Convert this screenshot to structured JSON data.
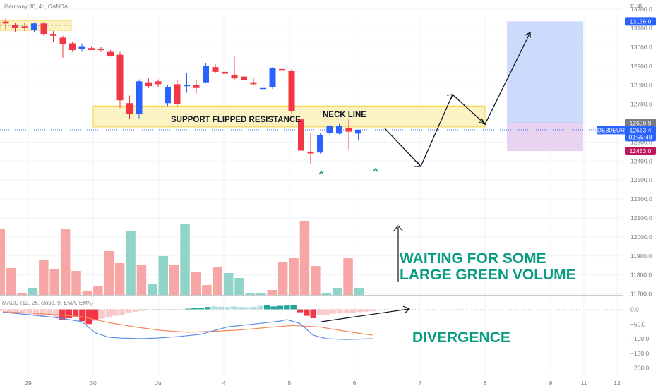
{
  "header": {
    "symbol_line": "Germany 30, 4h, OANDA",
    "currency": "EUR"
  },
  "price_axis": {
    "ticks": [
      "13200.0",
      "13100.0",
      "13000.0",
      "12900.0",
      "12800.0",
      "12700.0",
      "12600.0",
      "12500.0",
      "12400.0",
      "12300.0",
      "12200.0",
      "12100.0",
      "12000.0",
      "11900.0",
      "11800.0",
      "11700.0"
    ],
    "tick_values": [
      13200,
      13100,
      13000,
      12900,
      12800,
      12700,
      12600,
      12500,
      12400,
      12300,
      12200,
      12100,
      12000,
      11900,
      11800,
      11700
    ]
  },
  "badges": {
    "target": {
      "text": "13136.0",
      "value": 13136,
      "color": "#2962ff"
    },
    "entry": {
      "text": "12600.9",
      "value": 12600.9,
      "color": "#787b86"
    },
    "symbol": {
      "text": "DE30EUR",
      "color": "#2962ff"
    },
    "last": {
      "text": "12563.4",
      "value": 12563.4,
      "color": "#2962ff"
    },
    "timer": {
      "text": "02:55:48",
      "color": "#2962ff"
    },
    "stop": {
      "text": "12453.0",
      "value": 12453,
      "color": "#c2185b"
    }
  },
  "date_axis": {
    "labels": [
      "29",
      "30",
      "Jul",
      "4",
      "5",
      "6",
      "7",
      "8",
      "9",
      "11",
      "12"
    ],
    "day_index": [
      0,
      1,
      2,
      3,
      4,
      5,
      6,
      7,
      8,
      9,
      10
    ]
  },
  "macd": {
    "label": "MACD (12, 26, close, 9, EMA, EMA)",
    "ticks": [
      "0.0",
      "−50.0",
      "−100.0",
      "−150.0",
      "−200.0"
    ],
    "tick_values": [
      0,
      -50,
      -100,
      -150,
      -200
    ],
    "macd_line_color": "#5b8ee6",
    "signal_line_color": "#f7875a"
  },
  "annotations": {
    "support": "SUPPORT FLIPPED RESISTANCE",
    "neck": "NECK LINE",
    "waiting_1": "WAITING FOR SOME",
    "waiting_2": "LARGE GREEN VOLUME",
    "divergence": "DIVERGENCE"
  },
  "colors": {
    "up": "#2962ff",
    "down": "#f23645",
    "vol_up": "#8fd3c9",
    "vol_down": "#f7a6a6",
    "zone_fill": "#fbf3c4",
    "zone_stroke": "#f5cf3a",
    "target_zone": "#c7d7fb",
    "stop_zone": "#e6cfee",
    "hist_pos_dark": "#26a69a",
    "hist_pos_light": "#b2dfdb",
    "hist_neg_dark": "#f23645",
    "hist_neg_light": "#fbc9c9",
    "annotation_green": "#0a9c80"
  },
  "chart_data": {
    "type": "candlestick",
    "x_unit": "bar index (4h bars)",
    "ylim": [
      11700,
      13230
    ],
    "bars": [
      {
        "i": 0,
        "open": 13135,
        "high": 13150,
        "low": 13095,
        "close": 13125
      },
      {
        "i": 1,
        "open": 13115,
        "high": 13130,
        "low": 13080,
        "close": 13100
      },
      {
        "i": 2,
        "open": 13110,
        "high": 13130,
        "low": 13085,
        "close": 13100
      },
      {
        "i": 3,
        "open": 13090,
        "high": 13130,
        "low": 13080,
        "close": 13125
      },
      {
        "i": 4,
        "open": 13125,
        "high": 13135,
        "low": 13060,
        "close": 13070
      },
      {
        "i": 5,
        "open": 13070,
        "high": 13085,
        "low": 13025,
        "close": 13060
      },
      {
        "i": 6,
        "open": 13050,
        "high": 13060,
        "low": 12945,
        "close": 13015
      },
      {
        "i": 7,
        "open": 13020,
        "high": 13030,
        "low": 12975,
        "close": 12985
      },
      {
        "i": 8,
        "open": 12990,
        "high": 13020,
        "low": 12975,
        "close": 13005
      },
      {
        "i": 9,
        "open": 12995,
        "high": 13005,
        "low": 12985,
        "close": 12985
      },
      {
        "i": 10,
        "open": 12990,
        "high": 13000,
        "low": 12975,
        "close": 12985
      },
      {
        "i": 11,
        "open": 12975,
        "high": 12985,
        "low": 12950,
        "close": 12955
      },
      {
        "i": 12,
        "open": 12960,
        "high": 12975,
        "low": 12680,
        "close": 12720
      },
      {
        "i": 13,
        "open": 12705,
        "high": 12745,
        "low": 12620,
        "close": 12650
      },
      {
        "i": 14,
        "open": 12650,
        "high": 12830,
        "low": 12625,
        "close": 12820
      },
      {
        "i": 15,
        "open": 12815,
        "high": 12835,
        "low": 12785,
        "close": 12795
      },
      {
        "i": 16,
        "open": 12820,
        "high": 12830,
        "low": 12790,
        "close": 12805
      },
      {
        "i": 17,
        "open": 12705,
        "high": 12800,
        "low": 12690,
        "close": 12790
      },
      {
        "i": 18,
        "open": 12805,
        "high": 12825,
        "low": 12690,
        "close": 12700
      },
      {
        "i": 19,
        "open": 12800,
        "high": 12865,
        "low": 12760,
        "close": 12800
      },
      {
        "i": 20,
        "open": 12800,
        "high": 12830,
        "low": 12755,
        "close": 12785
      },
      {
        "i": 21,
        "open": 12815,
        "high": 12915,
        "low": 12810,
        "close": 12900
      },
      {
        "i": 22,
        "open": 12895,
        "high": 12910,
        "low": 12865,
        "close": 12870
      },
      {
        "i": 23,
        "open": 12870,
        "high": 12885,
        "low": 12860,
        "close": 12860
      },
      {
        "i": 24,
        "open": 12855,
        "high": 12950,
        "low": 12825,
        "close": 12835
      },
      {
        "i": 25,
        "open": 12845,
        "high": 12870,
        "low": 12790,
        "close": 12825
      },
      {
        "i": 26,
        "open": 12815,
        "high": 12840,
        "low": 12800,
        "close": 12805
      },
      {
        "i": 27,
        "open": 12785,
        "high": 12830,
        "low": 12775,
        "close": 12785
      },
      {
        "i": 28,
        "open": 12790,
        "high": 12895,
        "low": 12780,
        "close": 12890
      },
      {
        "i": 29,
        "open": 12885,
        "high": 12900,
        "low": 12875,
        "close": 12880
      },
      {
        "i": 30,
        "open": 12875,
        "high": 12885,
        "low": 12650,
        "close": 12665
      },
      {
        "i": 31,
        "open": 12620,
        "high": 12625,
        "low": 12435,
        "close": 12455
      },
      {
        "i": 32,
        "open": 12450,
        "high": 12545,
        "low": 12385,
        "close": 12440
      },
      {
        "i": 33,
        "open": 12445,
        "high": 12545,
        "low": 12440,
        "close": 12535
      },
      {
        "i": 34,
        "open": 12550,
        "high": 12590,
        "low": 12540,
        "close": 12585
      },
      {
        "i": 35,
        "open": 12545,
        "high": 12595,
        "low": 12540,
        "close": 12585
      },
      {
        "i": 36,
        "open": 12575,
        "high": 12620,
        "low": 12460,
        "close": 12555
      },
      {
        "i": 37,
        "open": 12545,
        "high": 12560,
        "low": 12510,
        "close": 12565
      }
    ],
    "volume": [
      {
        "i": 0,
        "value": 93,
        "dir": "down"
      },
      {
        "i": 1,
        "value": 38,
        "dir": "down"
      },
      {
        "i": 2,
        "value": 3,
        "dir": "down"
      },
      {
        "i": 3,
        "value": 10,
        "dir": "up"
      },
      {
        "i": 4,
        "value": 50,
        "dir": "down"
      },
      {
        "i": 5,
        "value": 37,
        "dir": "down"
      },
      {
        "i": 6,
        "value": 93,
        "dir": "down"
      },
      {
        "i": 7,
        "value": 34,
        "dir": "down"
      },
      {
        "i": 8,
        "value": 5,
        "dir": "down"
      },
      {
        "i": 9,
        "value": 12,
        "dir": "down"
      },
      {
        "i": 10,
        "value": 62,
        "dir": "down"
      },
      {
        "i": 11,
        "value": 45,
        "dir": "down"
      },
      {
        "i": 12,
        "value": 90,
        "dir": "up"
      },
      {
        "i": 13,
        "value": 42,
        "dir": "down"
      },
      {
        "i": 14,
        "value": 15,
        "dir": "up"
      },
      {
        "i": 15,
        "value": 55,
        "dir": "up"
      },
      {
        "i": 16,
        "value": 43,
        "dir": "down"
      },
      {
        "i": 17,
        "value": 100,
        "dir": "up"
      },
      {
        "i": 18,
        "value": 33,
        "dir": "down"
      },
      {
        "i": 19,
        "value": 14,
        "dir": "down"
      },
      {
        "i": 20,
        "value": 40,
        "dir": "down"
      },
      {
        "i": 21,
        "value": 31,
        "dir": "up"
      },
      {
        "i": 22,
        "value": 24,
        "dir": "up"
      },
      {
        "i": 23,
        "value": 3,
        "dir": "up"
      },
      {
        "i": 24,
        "value": 3,
        "dir": "up"
      },
      {
        "i": 25,
        "value": 7,
        "dir": "down"
      },
      {
        "i": 26,
        "value": 46,
        "dir": "down"
      },
      {
        "i": 27,
        "value": 52,
        "dir": "down"
      },
      {
        "i": 28,
        "value": 105,
        "dir": "down"
      },
      {
        "i": 29,
        "value": 41,
        "dir": "down"
      },
      {
        "i": 30,
        "value": 3,
        "dir": "up"
      },
      {
        "i": 31,
        "value": 10,
        "dir": "up"
      },
      {
        "i": 32,
        "value": 52,
        "dir": "down"
      },
      {
        "i": 33,
        "value": 10,
        "dir": "up"
      }
    ],
    "macd_hist": [
      {
        "i": 0,
        "value": -5
      },
      {
        "i": 1,
        "value": -8
      },
      {
        "i": 2,
        "value": -10
      },
      {
        "i": 3,
        "value": -12
      },
      {
        "i": 4,
        "value": -14
      },
      {
        "i": 5,
        "value": -22
      },
      {
        "i": 6,
        "value": -25
      },
      {
        "i": 7,
        "value": -20
      },
      {
        "i": 8,
        "value": -28
      },
      {
        "i": 9,
        "value": -35
      },
      {
        "i": 10,
        "value": -30
      },
      {
        "i": 11,
        "value": -25
      },
      {
        "i": 12,
        "value": -40
      },
      {
        "i": 13,
        "value": -50
      },
      {
        "i": 14,
        "value": -38
      },
      {
        "i": 15,
        "value": -32
      },
      {
        "i": 16,
        "value": -28
      },
      {
        "i": 17,
        "value": -22
      },
      {
        "i": 18,
        "value": -18
      },
      {
        "i": 19,
        "value": -12
      },
      {
        "i": 20,
        "value": -8
      },
      {
        "i": 21,
        "value": -5
      },
      {
        "i": 22,
        "value": -3
      },
      {
        "i": 23,
        "value": -3
      },
      {
        "i": 24,
        "value": -2
      },
      {
        "i": 25,
        "value": -2
      },
      {
        "i": 26,
        "value": -1
      },
      {
        "i": 27,
        "value": -1
      },
      {
        "i": 28,
        "value": 2
      },
      {
        "i": 29,
        "value": 4
      },
      {
        "i": 30,
        "value": 6
      },
      {
        "i": 31,
        "value": 8
      },
      {
        "i": 32,
        "value": 10
      },
      {
        "i": 33,
        "value": 9
      },
      {
        "i": 34,
        "value": 8
      },
      {
        "i": 35,
        "value": 10
      },
      {
        "i": 36,
        "value": 8
      },
      {
        "i": 37,
        "value": 7
      },
      {
        "i": 38,
        "value": 9
      },
      {
        "i": 39,
        "value": 12
      },
      {
        "i": 40,
        "value": 14
      },
      {
        "i": 41,
        "value": 10
      },
      {
        "i": 42,
        "value": 12
      },
      {
        "i": 43,
        "value": 13
      },
      {
        "i": 44,
        "value": 15
      },
      {
        "i": 45,
        "value": -10
      },
      {
        "i": 46,
        "value": -22
      },
      {
        "i": 47,
        "value": -30
      },
      {
        "i": 48,
        "value": -20
      },
      {
        "i": 49,
        "value": -18
      },
      {
        "i": 50,
        "value": -15
      },
      {
        "i": 51,
        "value": -14
      },
      {
        "i": 52,
        "value": -12
      },
      {
        "i": 53,
        "value": -11
      },
      {
        "i": 54,
        "value": -9
      },
      {
        "i": 55,
        "value": -8
      },
      {
        "i": 56,
        "value": -6
      }
    ],
    "macd_line": [
      [
        0,
        -10
      ],
      [
        4,
        -18
      ],
      [
        8,
        -28
      ],
      [
        12,
        -42
      ],
      [
        14,
        -80
      ],
      [
        16,
        -95
      ],
      [
        18,
        -98
      ],
      [
        21,
        -100
      ],
      [
        24,
        -97
      ],
      [
        27,
        -92
      ],
      [
        30,
        -85
      ],
      [
        34,
        -60
      ],
      [
        38,
        -50
      ],
      [
        42,
        -40
      ],
      [
        43,
        -35
      ],
      [
        45,
        -48
      ],
      [
        47,
        -88
      ],
      [
        49,
        -100
      ],
      [
        52,
        -103
      ],
      [
        56,
        -100
      ]
    ],
    "signal_line": [
      [
        0,
        -8
      ],
      [
        6,
        -15
      ],
      [
        12,
        -25
      ],
      [
        16,
        -45
      ],
      [
        20,
        -60
      ],
      [
        24,
        -72
      ],
      [
        28,
        -78
      ],
      [
        32,
        -75
      ],
      [
        36,
        -70
      ],
      [
        40,
        -62
      ],
      [
        44,
        -55
      ],
      [
        48,
        -60
      ],
      [
        52,
        -75
      ],
      [
        55,
        -85
      ],
      [
        56,
        -88
      ]
    ],
    "levels": {
      "zone_low": 12580,
      "zone_high": 12690,
      "neck_line": 12625,
      "entry": 12600.9,
      "target": 13136,
      "stop": 12453
    }
  }
}
